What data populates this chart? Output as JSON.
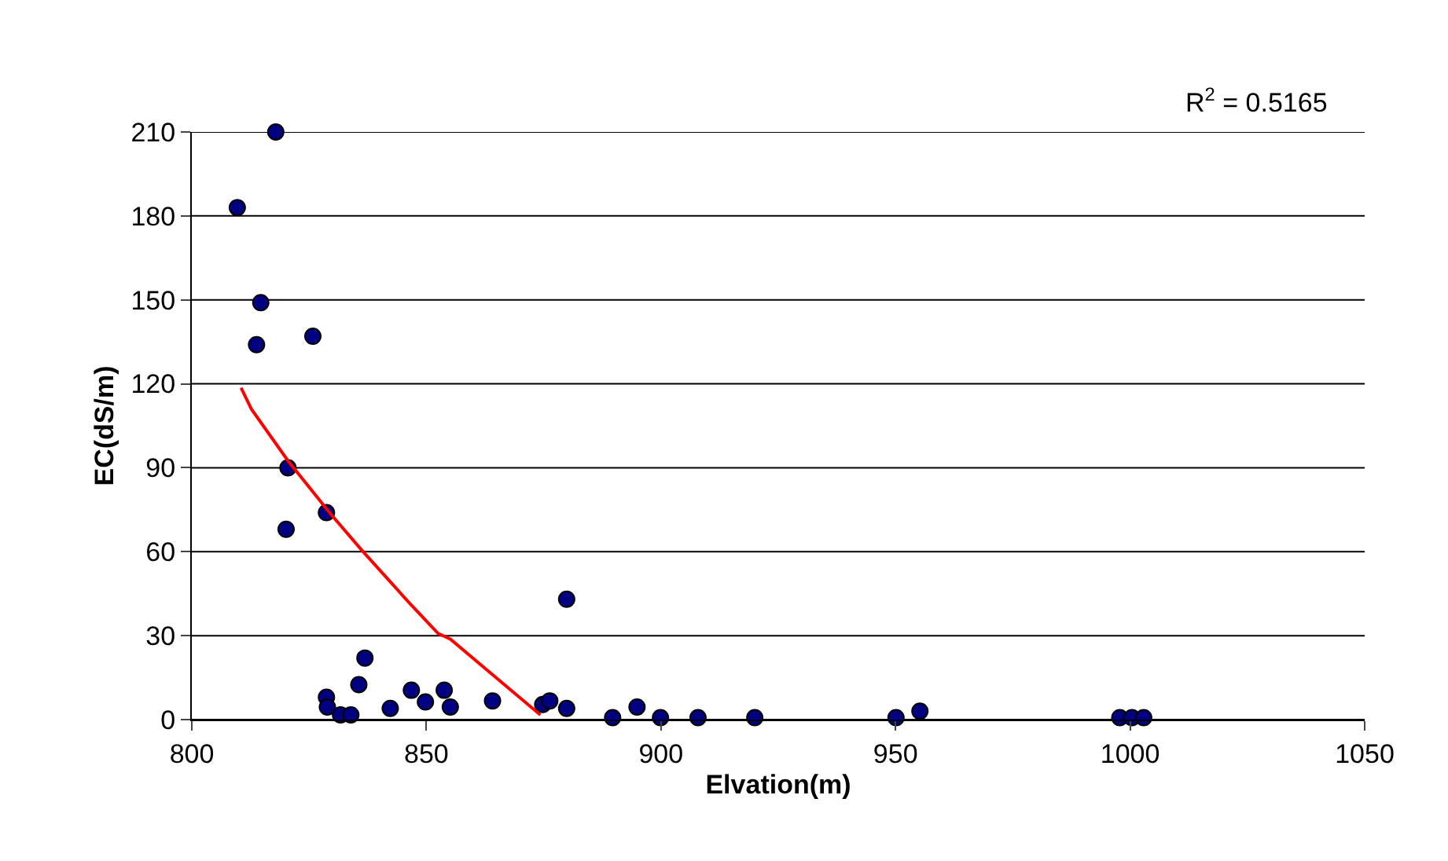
{
  "chart_data": {
    "type": "scatter",
    "xlabel": "Elvation(m)",
    "ylabel": "EC(dS/m)",
    "xlim": [
      800,
      1050
    ],
    "xticks": [
      800,
      850,
      900,
      950,
      1000,
      1050
    ],
    "ylim": [
      0,
      210
    ],
    "yticks": [
      0,
      30,
      60,
      90,
      120,
      150,
      180,
      210
    ],
    "grid": "y",
    "marker": "circle",
    "annotations": [
      "R$^{2}$ = 0.5165"
    ],
    "series": [
      {
        "color": "#000080",
        "x": [
          809.7,
          817.9,
          814.7,
          813.8,
          825.8,
          820.5,
          820.1,
          828.7,
          828.7,
          828.9,
          831.7,
          833.9,
          835.6,
          836.9,
          842.3,
          846.8,
          849.8,
          853.8,
          855.1,
          864.1,
          874.8,
          876.3,
          879.9,
          879.9,
          889.7,
          894.9,
          899.9,
          907.9,
          920,
          950.1,
          955.2,
          997.8,
          1000.4,
          1002.9
        ],
        "values": [
          183,
          210,
          149,
          134,
          137,
          90,
          68,
          74,
          8,
          4.5,
          1.7,
          1.7,
          12.5,
          22,
          4,
          10.5,
          6.3,
          10.5,
          4.5,
          6.7,
          5.4,
          6.7,
          43,
          4,
          0.7,
          4.5,
          0.7,
          0.7,
          0.7,
          0.7,
          3,
          0.7,
          0.7,
          0.7
        ]
      },
      {
        "type": "line",
        "color": "#ff0000",
        "marker": "none",
        "x": [
          810.5,
          812.7,
          820.5,
          829.5,
          836.2,
          846.2,
          852.5,
          855.1,
          863,
          874.3
        ],
        "values": [
          118.6,
          111,
          92.5,
          73.7,
          60.6,
          42,
          30.8,
          28.8,
          17.6,
          1.7
        ]
      }
    ]
  }
}
